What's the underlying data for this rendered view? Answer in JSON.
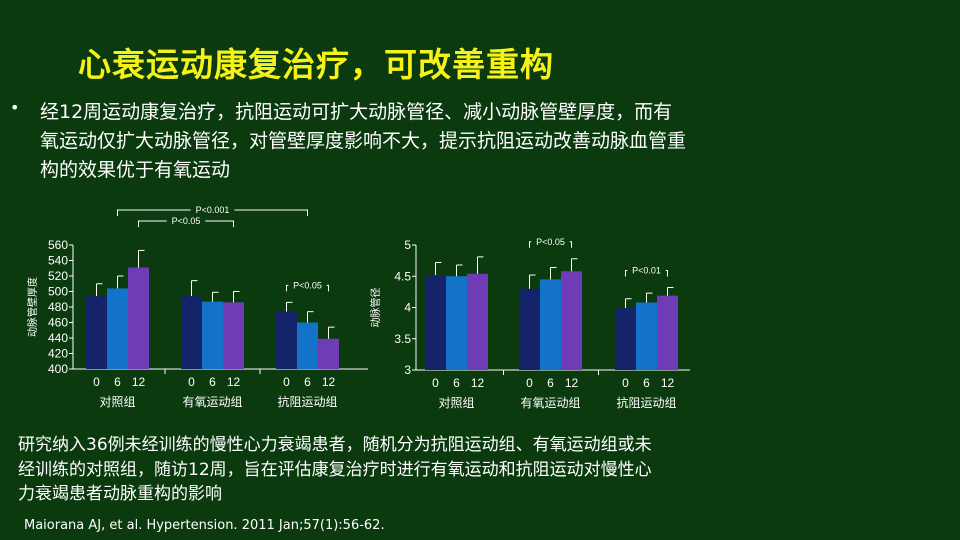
{
  "slide": {
    "title": "心衰运动康复治疗，可改善重构",
    "bullet_marker": "•",
    "bullet": "经12周运动康复治疗，抗阻运动可扩大动脉管径、减小动脉管壁厚度，而有氧运动仅扩大动脉管径，对管壁厚度影响不大，提示抗阻运动改善动脉血管重构的效果优于有氧运动",
    "note": "研究纳入36例未经训练的慢性心力衰竭患者，随机分为抗阻运动组、有氧运动组或未经训练的对照组，随访12周，旨在评估康复治疗时进行有氧运动和抗阻运动对慢性心力衰竭患者动脉重构的影响",
    "citation": "Maiorana AJ, et al. Hypertension.  2011 Jan;57(1):56-62."
  },
  "colors": {
    "background": "#0a3a0e",
    "title": "#f5f21a",
    "week0": "#15236a",
    "week6": "#1273c9",
    "week12": "#6e3cb4"
  },
  "chart_data": [
    {
      "type": "bar",
      "ylabel": "动脉管壁厚度",
      "ylim": [
        400,
        560
      ],
      "yticks": [
        400,
        420,
        440,
        460,
        480,
        500,
        520,
        540,
        560
      ],
      "groups": [
        "对照组",
        "有氧运动组",
        "抗阻运动组"
      ],
      "categories": [
        "0",
        "6",
        "12"
      ],
      "series": [
        {
          "values": [
            494,
            504,
            531
          ],
          "errors": [
            16,
            16,
            22
          ]
        },
        {
          "values": [
            494,
            487,
            486
          ],
          "errors": [
            20,
            12,
            14
          ]
        },
        {
          "values": [
            474,
            460,
            439
          ],
          "errors": [
            12,
            14,
            15
          ]
        }
      ],
      "annotations": [
        {
          "text": "P<0.05",
          "from": [
            0,
            2
          ],
          "to": [
            1,
            2
          ],
          "level": 1
        },
        {
          "text": "P<0.001",
          "from": [
            0,
            1
          ],
          "to": [
            2,
            1
          ],
          "level": 2
        },
        {
          "text": "P<0.05",
          "from": [
            2,
            0
          ],
          "to": [
            2,
            2
          ],
          "level": 0
        }
      ]
    },
    {
      "type": "bar",
      "ylabel": "动脉管径",
      "ylim": [
        3,
        5
      ],
      "yticks": [
        "3",
        "3.5",
        "4",
        "4.5",
        "5"
      ],
      "groups": [
        "对照组",
        "有氧运动组",
        "抗阻运动组"
      ],
      "categories": [
        "0",
        "6",
        "12"
      ],
      "series": [
        {
          "values": [
            4.52,
            4.5,
            4.54
          ],
          "errors": [
            0.2,
            0.18,
            0.27
          ]
        },
        {
          "values": [
            4.3,
            4.45,
            4.58
          ],
          "errors": [
            0.22,
            0.19,
            0.2
          ]
        },
        {
          "values": [
            3.99,
            4.08,
            4.19
          ],
          "errors": [
            0.15,
            0.15,
            0.13
          ]
        }
      ],
      "annotations": [
        {
          "text": "P<0.05",
          "from": [
            1,
            0
          ],
          "to": [
            1,
            2
          ],
          "level": 0
        },
        {
          "text": "P<0.01",
          "from": [
            2,
            0
          ],
          "to": [
            2,
            2
          ],
          "level": 0
        }
      ]
    }
  ]
}
